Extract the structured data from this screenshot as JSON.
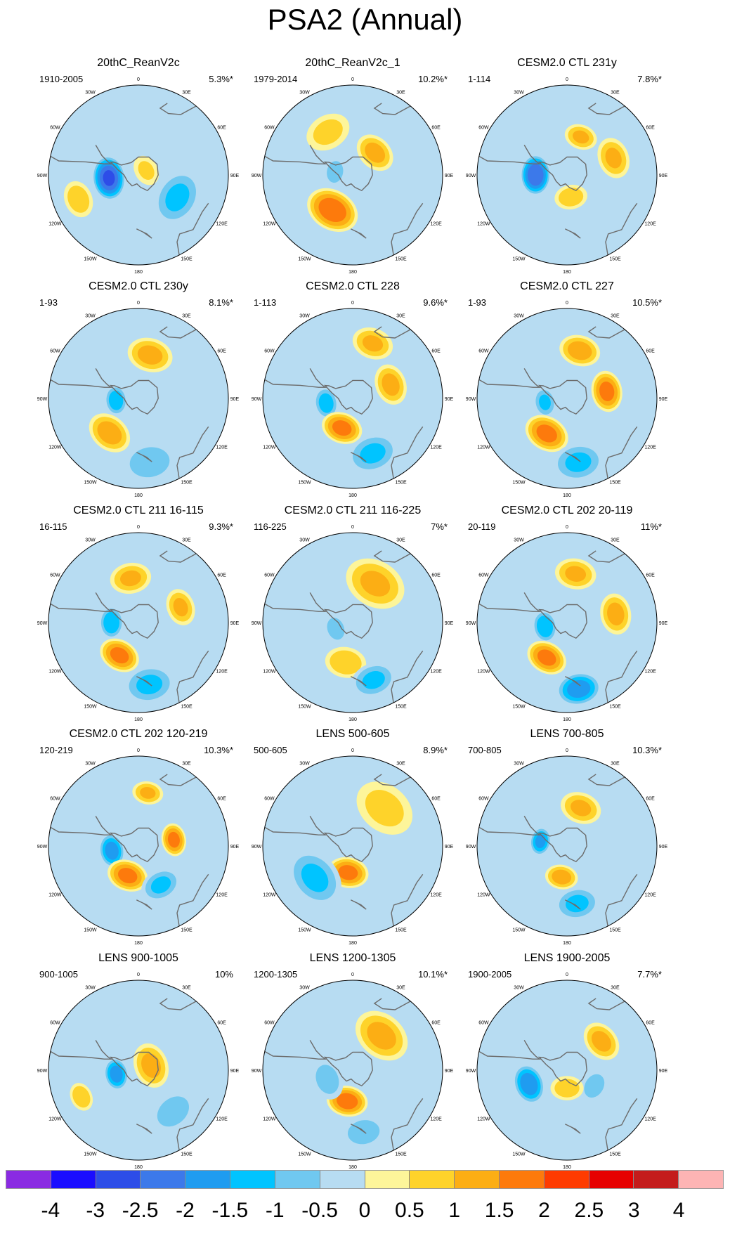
{
  "title": "PSA2 (Annual)",
  "colors": {
    "ocean": "#b7dcf2",
    "land_outline": "#6c6c6c",
    "levels": [
      "#8a2be2",
      "#1a0dff",
      "#2d4de8",
      "#3c79ea",
      "#1f9cf0",
      "#00c4ff",
      "#70c8f0",
      "#b7dcf2",
      "#fdf59a",
      "#fed32a",
      "#fcae14",
      "#fd7a0c",
      "#fe3b00",
      "#e60000",
      "#c41c1c",
      "#fdb4b4"
    ]
  },
  "colorbar": {
    "labels": [
      "-4",
      "-3",
      "-2.5",
      "-2",
      "-1.5",
      "-1",
      "-0.5",
      "0",
      "0.5",
      "1",
      "1.5",
      "2",
      "2.5",
      "3",
      "4"
    ]
  },
  "lon_labels": [
    "0",
    "30E",
    "60E",
    "90E",
    "120E",
    "150E",
    "180",
    "150W",
    "120W",
    "90W",
    "60W",
    "30W"
  ],
  "panels": [
    {
      "title": "20thC_ReanV2c",
      "period": "1910-2005",
      "percent": "5.3%*",
      "features": [
        {
          "lon": -96,
          "r": 0.33,
          "amp": -2.5,
          "size": 0.22
        },
        {
          "lon": 120,
          "r": 0.5,
          "amp": -1.0,
          "size": 0.28
        },
        {
          "lon": -112,
          "r": 0.72,
          "amp": 0.8,
          "size": 0.18
        },
        {
          "lon": 60,
          "r": 0.1,
          "amp": 0.5,
          "size": 0.15
        }
      ]
    },
    {
      "title": "20thC_ReanV2c_1",
      "period": "1979-2014",
      "percent": "10.2%*",
      "features": [
        {
          "lon": -150,
          "r": 0.45,
          "amp": 1.8,
          "size": 0.26
        },
        {
          "lon": -80,
          "r": 0.2,
          "amp": -0.8,
          "size": 0.14
        },
        {
          "lon": 45,
          "r": 0.35,
          "amp": 1.1,
          "size": 0.2
        },
        {
          "lon": -30,
          "r": 0.55,
          "amp": 0.6,
          "size": 0.22
        }
      ]
    },
    {
      "title": "CESM2.0 CTL 231y",
      "period": "1-114",
      "percent": "7.8%*",
      "features": [
        {
          "lon": -90,
          "r": 0.35,
          "amp": -2.4,
          "size": 0.2
        },
        {
          "lon": 70,
          "r": 0.55,
          "amp": 1.0,
          "size": 0.2
        },
        {
          "lon": 20,
          "r": 0.45,
          "amp": 1.0,
          "size": 0.16
        },
        {
          "lon": 170,
          "r": 0.25,
          "amp": 0.8,
          "size": 0.16
        }
      ]
    },
    {
      "title": "CESM2.0 CTL 230y",
      "period": "1-93",
      "percent": "8.1%*",
      "features": [
        {
          "lon": -95,
          "r": 0.25,
          "amp": -1.3,
          "size": 0.15
        },
        {
          "lon": -140,
          "r": 0.5,
          "amp": 1.2,
          "size": 0.22
        },
        {
          "lon": 15,
          "r": 0.5,
          "amp": 1.1,
          "size": 0.22
        },
        {
          "lon": 170,
          "r": 0.72,
          "amp": -0.9,
          "size": 0.25
        }
      ]
    },
    {
      "title": "CESM2.0 CTL 228",
      "period": "1-113",
      "percent": "9.6%*",
      "features": [
        {
          "lon": -100,
          "r": 0.3,
          "amp": -1.2,
          "size": 0.16
        },
        {
          "lon": -160,
          "r": 0.35,
          "amp": 1.6,
          "size": 0.2
        },
        {
          "lon": 70,
          "r": 0.45,
          "amp": 1.1,
          "size": 0.2
        },
        {
          "lon": 20,
          "r": 0.65,
          "amp": 1.0,
          "size": 0.2
        },
        {
          "lon": 160,
          "r": 0.65,
          "amp": -1.0,
          "size": 0.25
        }
      ]
    },
    {
      "title": "CESM2.0 CTL 227",
      "period": "1-93",
      "percent": "10.5%*",
      "features": [
        {
          "lon": -100,
          "r": 0.25,
          "amp": -1.0,
          "size": 0.15
        },
        {
          "lon": -150,
          "r": 0.45,
          "amp": 1.6,
          "size": 0.22
        },
        {
          "lon": 80,
          "r": 0.45,
          "amp": 1.6,
          "size": 0.2
        },
        {
          "lon": 15,
          "r": 0.55,
          "amp": 1.2,
          "size": 0.2
        },
        {
          "lon": 170,
          "r": 0.72,
          "amp": -1.0,
          "size": 0.25
        }
      ]
    },
    {
      "title": "CESM2.0 CTL 211 16-115",
      "period": "16-115",
      "percent": "9.3%*",
      "features": [
        {
          "lon": -90,
          "r": 0.3,
          "amp": -1.4,
          "size": 0.16
        },
        {
          "lon": -150,
          "r": 0.42,
          "amp": 1.6,
          "size": 0.2
        },
        {
          "lon": 70,
          "r": 0.5,
          "amp": 1.0,
          "size": 0.18
        },
        {
          "lon": -10,
          "r": 0.5,
          "amp": 1.0,
          "size": 0.2
        },
        {
          "lon": 170,
          "r": 0.7,
          "amp": -1.0,
          "size": 0.25
        }
      ]
    },
    {
      "title": "CESM2.0 CTL 211 116-225",
      "period": "116-225",
      "percent": "7%*",
      "features": [
        {
          "lon": -110,
          "r": 0.2,
          "amp": -0.9,
          "size": 0.14
        },
        {
          "lon": -170,
          "r": 0.45,
          "amp": 0.9,
          "size": 0.2
        },
        {
          "lon": 30,
          "r": 0.5,
          "amp": 1.0,
          "size": 0.3
        },
        {
          "lon": 160,
          "r": 0.68,
          "amp": -1.0,
          "size": 0.22
        }
      ]
    },
    {
      "title": "CESM2.0 CTL 202 20-119",
      "period": "20-119",
      "percent": "11%*",
      "features": [
        {
          "lon": -100,
          "r": 0.25,
          "amp": -1.4,
          "size": 0.16
        },
        {
          "lon": -150,
          "r": 0.45,
          "amp": 1.6,
          "size": 0.2
        },
        {
          "lon": 80,
          "r": 0.55,
          "amp": 1.1,
          "size": 0.2
        },
        {
          "lon": 10,
          "r": 0.55,
          "amp": 1.0,
          "size": 0.2
        },
        {
          "lon": 170,
          "r": 0.75,
          "amp": -1.7,
          "size": 0.22
        }
      ]
    },
    {
      "title": "CESM2.0 CTL 202 120-219",
      "period": "120-219",
      "percent": "10.3%*",
      "features": [
        {
          "lon": -100,
          "r": 0.3,
          "amp": -1.7,
          "size": 0.17
        },
        {
          "lon": -160,
          "r": 0.35,
          "amp": 1.6,
          "size": 0.2
        },
        {
          "lon": 80,
          "r": 0.4,
          "amp": 1.6,
          "size": 0.16
        },
        {
          "lon": 10,
          "r": 0.6,
          "amp": 1.0,
          "size": 0.15
        },
        {
          "lon": 150,
          "r": 0.5,
          "amp": -1.0,
          "size": 0.2
        }
      ]
    },
    {
      "title": "LENS 500-605",
      "period": "500-605",
      "percent": "8.9%*",
      "features": [
        {
          "lon": -170,
          "r": 0.3,
          "amp": 1.6,
          "size": 0.2
        },
        {
          "lon": -130,
          "r": 0.55,
          "amp": -1.0,
          "size": 0.3
        },
        {
          "lon": 40,
          "r": 0.55,
          "amp": 0.6,
          "size": 0.3
        }
      ]
    },
    {
      "title": "LENS 700-805",
      "period": "700-805",
      "percent": "10.3%*",
      "features": [
        {
          "lon": -80,
          "r": 0.3,
          "amp": -1.6,
          "size": 0.14
        },
        {
          "lon": -170,
          "r": 0.35,
          "amp": 1.2,
          "size": 0.16
        },
        {
          "lon": 20,
          "r": 0.45,
          "amp": 1.0,
          "size": 0.2
        },
        {
          "lon": 170,
          "r": 0.65,
          "amp": -1.0,
          "size": 0.22
        }
      ]
    },
    {
      "title": "LENS 900-1005",
      "period": "900-1005",
      "percent": "10%",
      "features": [
        {
          "lon": -100,
          "r": 0.25,
          "amp": -1.7,
          "size": 0.16
        },
        {
          "lon": 70,
          "r": 0.15,
          "amp": 1.1,
          "size": 0.22
        },
        {
          "lon": -115,
          "r": 0.7,
          "amp": 0.9,
          "size": 0.14
        },
        {
          "lon": 140,
          "r": 0.6,
          "amp": -0.9,
          "size": 0.22
        }
      ]
    },
    {
      "title": "LENS 1200-1305",
      "period": "1200-1305",
      "percent": "10.1%*",
      "features": [
        {
          "lon": -170,
          "r": 0.35,
          "amp": 1.7,
          "size": 0.2
        },
        {
          "lon": 40,
          "r": 0.5,
          "amp": 1.1,
          "size": 0.28
        },
        {
          "lon": -110,
          "r": 0.3,
          "amp": -0.7,
          "size": 0.2
        },
        {
          "lon": 170,
          "r": 0.7,
          "amp": -0.9,
          "size": 0.2
        }
      ]
    },
    {
      "title": "LENS 1900-2005",
      "period": "1900-2005",
      "percent": "7.7%*",
      "features": [
        {
          "lon": -110,
          "r": 0.45,
          "amp": -1.8,
          "size": 0.2
        },
        {
          "lon": 50,
          "r": 0.5,
          "amp": 1.1,
          "size": 0.2
        },
        {
          "lon": 120,
          "r": 0.35,
          "amp": -0.8,
          "size": 0.16
        },
        {
          "lon": 180,
          "r": 0.2,
          "amp": 0.8,
          "size": 0.16
        }
      ]
    }
  ]
}
